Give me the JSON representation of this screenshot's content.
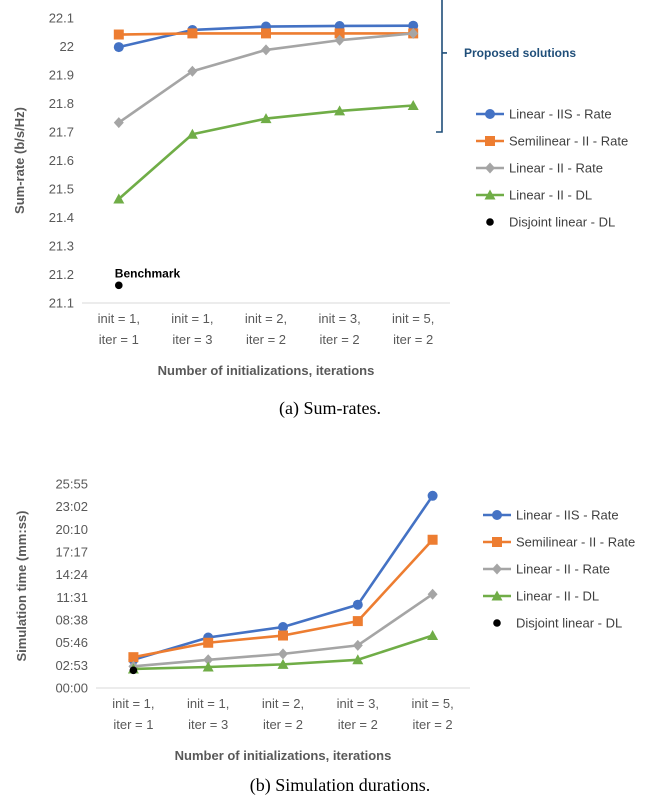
{
  "chart_data": [
    {
      "type": "line",
      "caption": "(a) Sum-rates.",
      "xlabel": "Number of initializations, iterations",
      "ylabel": "Sum-rate (b/s/Hz)",
      "categories": [
        [
          "init = 1,",
          "iter = 1"
        ],
        [
          "init = 1,",
          "iter = 3"
        ],
        [
          "init = 2,",
          "iter = 2"
        ],
        [
          "init = 3,",
          "iter = 2"
        ],
        [
          "init = 5,",
          "iter = 2"
        ]
      ],
      "yticks": [
        "21.1",
        "21.2",
        "21.3",
        "21.4",
        "21.5",
        "21.6",
        "21.7",
        "21.8",
        "21.9",
        "22",
        "22.1"
      ],
      "ylim": [
        21.1,
        22.1
      ],
      "grid": false,
      "legend_position": "right",
      "series": [
        {
          "name": "Linear - IIS - Rate",
          "color": "#4472C4",
          "marker": "circle",
          "values": [
            21.998,
            22.058,
            22.07,
            22.072,
            22.073
          ]
        },
        {
          "name": "Semilinear - II - Rate",
          "color": "#ED7D31",
          "marker": "square",
          "values": [
            22.042,
            22.046,
            22.046,
            22.046,
            22.046
          ]
        },
        {
          "name": "Linear - II - Rate",
          "color": "#A5A5A5",
          "marker": "diamond",
          "values": [
            21.733,
            21.913,
            21.988,
            22.022,
            22.046
          ]
        },
        {
          "name": "Linear - II - DL",
          "color": "#70AD47",
          "marker": "triangle",
          "values": [
            21.465,
            21.692,
            21.747,
            21.774,
            21.793
          ]
        },
        {
          "name": "Disjoint linear - DL",
          "color": "#000000",
          "marker": "dot",
          "values": [
            21.162,
            null,
            null,
            null,
            null
          ]
        }
      ],
      "annotations": {
        "benchmark": "Benchmark",
        "proposed": "Proposed solutions",
        "proposed_color": "#1F4E79",
        "bracket_range": [
          21.7,
          22.255
        ]
      }
    },
    {
      "type": "line",
      "caption": "(b) Simulation durations.",
      "xlabel": "Number of initializations, iterations",
      "ylabel": "Simulation time (mm:ss)",
      "categories": [
        [
          "init = 1,",
          "iter = 1"
        ],
        [
          "init = 1,",
          "iter = 3"
        ],
        [
          "init = 2,",
          "iter = 2"
        ],
        [
          "init = 3,",
          "iter = 2"
        ],
        [
          "init = 5,",
          "iter = 2"
        ]
      ],
      "yticks": [
        "00:00",
        "02:53",
        "05:46",
        "08:38",
        "11:31",
        "14:24",
        "17:17",
        "20:10",
        "23:02",
        "25:55"
      ],
      "ylim_seconds": [
        0,
        1555
      ],
      "grid": false,
      "legend_position": "right",
      "series": [
        {
          "name": "Linear - IIS - Rate",
          "color": "#4472C4",
          "marker": "circle",
          "values_seconds": [
            215,
            385,
            465,
            635,
            1465
          ]
        },
        {
          "name": "Semilinear - II - Rate",
          "color": "#ED7D31",
          "marker": "square",
          "values_seconds": [
            235,
            345,
            400,
            510,
            1130
          ]
        },
        {
          "name": "Linear - II - Rate",
          "color": "#A5A5A5",
          "marker": "diamond",
          "values_seconds": [
            165,
            215,
            260,
            325,
            715
          ]
        },
        {
          "name": "Linear - II - DL",
          "color": "#70AD47",
          "marker": "triangle",
          "values_seconds": [
            145,
            160,
            180,
            215,
            400
          ]
        },
        {
          "name": "Disjoint linear - DL",
          "color": "#000000",
          "marker": "dot",
          "values_seconds": [
            135,
            null,
            null,
            null,
            null
          ]
        }
      ]
    }
  ]
}
